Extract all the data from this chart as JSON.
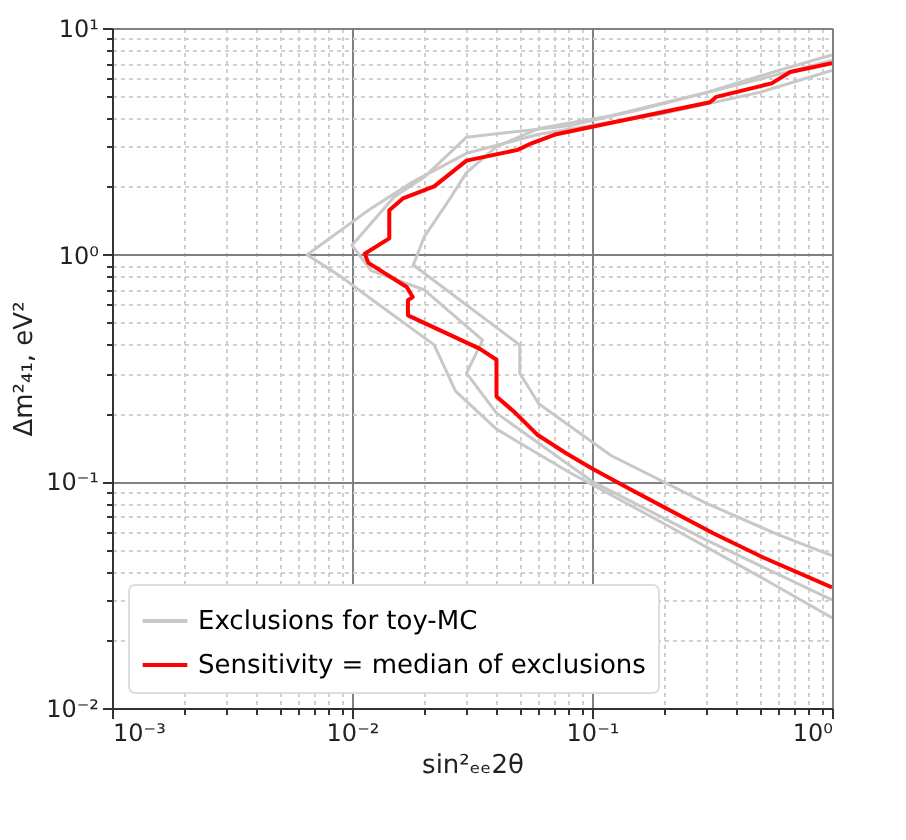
{
  "chart_data": {
    "type": "line",
    "xlabel": "sin²ₑₑ2θ",
    "ylabel": "Δm²₄₁, eV²",
    "log": "xy",
    "grid": true,
    "legend": "bottom left",
    "line_style": "solid",
    "marker": "none",
    "xlim": [
      0.001,
      1
    ],
    "ylim": [
      0.01,
      10
    ],
    "xticks": [
      {
        "value": 0.001,
        "label": "10⁻³"
      },
      {
        "value": 0.002,
        "label": null
      },
      {
        "value": 0.003,
        "label": null
      },
      {
        "value": 0.004,
        "label": null
      },
      {
        "value": 0.005,
        "label": null
      },
      {
        "value": 0.006,
        "label": null
      },
      {
        "value": 0.007,
        "label": null
      },
      {
        "value": 0.008,
        "label": null
      },
      {
        "value": 0.009,
        "label": null
      },
      {
        "value": 0.01,
        "label": "10⁻²"
      },
      {
        "value": 0.02,
        "label": null
      },
      {
        "value": 0.03,
        "label": null
      },
      {
        "value": 0.04,
        "label": null
      },
      {
        "value": 0.05,
        "label": null
      },
      {
        "value": 0.06,
        "label": null
      },
      {
        "value": 0.07,
        "label": null
      },
      {
        "value": 0.08,
        "label": null
      },
      {
        "value": 0.09,
        "label": null
      },
      {
        "value": 0.1,
        "label": "10⁻¹"
      },
      {
        "value": 0.2,
        "label": null
      },
      {
        "value": 0.3,
        "label": null
      },
      {
        "value": 0.4,
        "label": null
      },
      {
        "value": 0.5,
        "label": null
      },
      {
        "value": 0.6,
        "label": null
      },
      {
        "value": 0.7,
        "label": null
      },
      {
        "value": 0.8,
        "label": null
      },
      {
        "value": 0.9,
        "label": null
      },
      {
        "value": 1,
        "label": "10⁰"
      }
    ],
    "yticks": [
      {
        "value": 0.01,
        "label": "10⁻²"
      },
      {
        "value": 0.02,
        "label": null
      },
      {
        "value": 0.03,
        "label": null
      },
      {
        "value": 0.04,
        "label": null
      },
      {
        "value": 0.05,
        "label": null
      },
      {
        "value": 0.06,
        "label": null
      },
      {
        "value": 0.07,
        "label": null
      },
      {
        "value": 0.08,
        "label": null
      },
      {
        "value": 0.09,
        "label": null
      },
      {
        "value": 0.1,
        "label": "10⁻¹"
      },
      {
        "value": 0.2,
        "label": null
      },
      {
        "value": 0.3,
        "label": null
      },
      {
        "value": 0.4,
        "label": null
      },
      {
        "value": 0.5,
        "label": null
      },
      {
        "value": 0.6,
        "label": null
      },
      {
        "value": 0.7,
        "label": null
      },
      {
        "value": 0.8,
        "label": null
      },
      {
        "value": 0.9,
        "label": null
      },
      {
        "value": 1,
        "label": "10⁰"
      },
      {
        "value": 2,
        "label": null
      },
      {
        "value": 3,
        "label": null
      },
      {
        "value": 4,
        "label": null
      },
      {
        "value": 5,
        "label": null
      },
      {
        "value": 6,
        "label": null
      },
      {
        "value": 7,
        "label": null
      },
      {
        "value": 8,
        "label": null
      },
      {
        "value": 9,
        "label": null
      },
      {
        "value": 10,
        "label": "10¹"
      }
    ],
    "series": [
      {
        "name": "Exclusions for toy-MC",
        "color": "#c8c8c8",
        "x": [
          1,
          0.5,
          0.2,
          0.06,
          0.03,
          0.018,
          0.012,
          0.0065,
          0.009,
          0.013,
          0.022,
          0.027,
          0.04,
          0.08,
          0.2,
          0.5,
          1
        ],
        "values": [
          6.5,
          5.2,
          4.2,
          3.4,
          2.8,
          2.1,
          1.6,
          1.0,
          0.8,
          0.6,
          0.4,
          0.25,
          0.17,
          0.11,
          0.065,
          0.038,
          0.025
        ]
      },
      {
        "color": "#c8c8c8",
        "x": [
          1,
          0.6,
          0.3,
          0.12,
          0.06,
          0.04,
          0.03,
          0.025,
          0.02,
          0.018,
          0.03,
          0.05,
          0.05,
          0.06,
          0.12,
          0.3,
          0.6,
          1
        ],
        "values": [
          7.6,
          6.5,
          5.2,
          4.1,
          3.6,
          3.0,
          2.3,
          1.7,
          1.2,
          0.9,
          0.6,
          0.4,
          0.3,
          0.22,
          0.13,
          0.08,
          0.058,
          0.047
        ]
      },
      {
        "color": "#c8c8c8",
        "x": [
          1,
          0.4,
          0.15,
          0.08,
          0.03,
          0.02,
          0.015,
          0.01,
          0.012,
          0.02,
          0.035,
          0.03,
          0.04,
          0.1,
          0.3,
          1
        ],
        "values": [
          7.2,
          5.6,
          4.3,
          3.7,
          3.3,
          2.2,
          1.8,
          1.1,
          0.85,
          0.7,
          0.42,
          0.3,
          0.2,
          0.1,
          0.055,
          0.03
        ]
      },
      {
        "name": "Sensitivity = median of exclusions",
        "color": "#ff0000",
        "x": [
          1,
          0.67,
          0.56,
          0.33,
          0.31,
          0.132,
          0.071,
          0.056,
          0.049,
          0.03,
          0.022,
          0.0163,
          0.0143,
          0.0143,
          0.0113,
          0.0117,
          0.0169,
          0.0179,
          0.0171,
          0.0171,
          0.034,
          0.04,
          0.04,
          0.048,
          0.059,
          0.078,
          0.1,
          0.145,
          0.32,
          0.52,
          1
        ],
        "values": [
          7.0,
          6.4,
          5.7,
          4.97,
          4.7,
          3.9,
          3.4,
          3.1,
          2.9,
          2.6,
          2.0,
          1.77,
          1.57,
          1.18,
          1.01,
          0.92,
          0.72,
          0.65,
          0.63,
          0.54,
          0.385,
          0.344,
          0.237,
          0.2,
          0.161,
          0.133,
          0.114,
          0.092,
          0.059,
          0.046,
          0.034
        ]
      }
    ]
  }
}
